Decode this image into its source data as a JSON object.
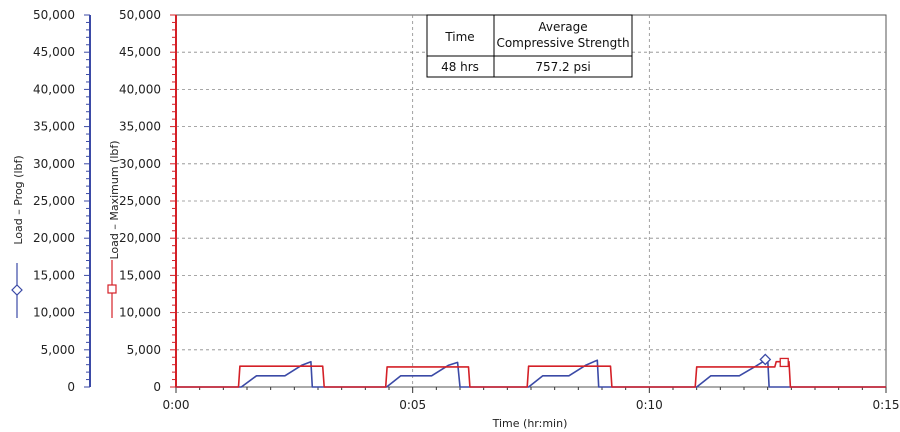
{
  "chart_data": {
    "type": "line",
    "title": "",
    "xlabel": "Time (hr:min)",
    "x_unit": "minutes",
    "xlim": [
      0,
      15
    ],
    "x_ticks": [
      0,
      5,
      10,
      15
    ],
    "x_tick_labels": [
      "0:00",
      "0:05",
      "0:10",
      "0:15"
    ],
    "y_axes": [
      {
        "label": "Load – Prog (lbf)",
        "color": "#3b4aa6",
        "ylim": [
          0,
          50000
        ],
        "ticks": [
          0,
          5000,
          10000,
          15000,
          20000,
          25000,
          30000,
          35000,
          40000,
          45000,
          50000
        ],
        "tick_labels": [
          "0",
          "5,000",
          "10,000",
          "15,000",
          "20,000",
          "25,000",
          "30,000",
          "35,000",
          "40,000",
          "45,000",
          "50,000"
        ]
      },
      {
        "label": "Load – Maximum (lbf)",
        "color": "#d42027",
        "ylim": [
          0,
          50000
        ],
        "ticks": [
          0,
          5000,
          10000,
          15000,
          20000,
          25000,
          30000,
          35000,
          40000,
          45000,
          50000
        ],
        "tick_labels": [
          "0",
          "5,000",
          "10,000",
          "15,000",
          "20,000",
          "25,000",
          "30,000",
          "35,000",
          "40,000",
          "45,000",
          "50,000"
        ]
      }
    ],
    "grid": true,
    "series": [
      {
        "name": "Load – Prog (lbf)",
        "color": "#3b4aa6",
        "marker": "diamond",
        "points": [
          [
            0,
            0
          ],
          [
            1.38,
            0
          ],
          [
            1.7,
            1500
          ],
          [
            2.3,
            1500
          ],
          [
            2.65,
            2900
          ],
          [
            2.85,
            3400
          ],
          [
            2.88,
            0
          ],
          [
            4.45,
            0
          ],
          [
            4.75,
            1500
          ],
          [
            5.4,
            1500
          ],
          [
            5.75,
            2900
          ],
          [
            5.95,
            3300
          ],
          [
            6.0,
            0
          ],
          [
            7.45,
            0
          ],
          [
            7.75,
            1500
          ],
          [
            8.3,
            1500
          ],
          [
            8.65,
            2900
          ],
          [
            8.9,
            3600
          ],
          [
            8.93,
            0
          ],
          [
            11.0,
            0
          ],
          [
            11.3,
            1500
          ],
          [
            11.9,
            1500
          ],
          [
            12.25,
            2800
          ],
          [
            12.5,
            3800
          ],
          [
            12.53,
            0
          ],
          [
            15,
            0
          ]
        ]
      },
      {
        "name": "Load – Maximum (lbf)",
        "color": "#d42027",
        "marker": "square",
        "points": [
          [
            0,
            0
          ],
          [
            1.32,
            0
          ],
          [
            1.35,
            2800
          ],
          [
            3.1,
            2800
          ],
          [
            3.13,
            0
          ],
          [
            4.43,
            0
          ],
          [
            4.46,
            2700
          ],
          [
            6.18,
            2700
          ],
          [
            6.21,
            0
          ],
          [
            7.42,
            0
          ],
          [
            7.45,
            2800
          ],
          [
            9.18,
            2800
          ],
          [
            9.21,
            0
          ],
          [
            10.97,
            0
          ],
          [
            11.0,
            2700
          ],
          [
            12.65,
            2700
          ],
          [
            12.68,
            3400
          ],
          [
            12.95,
            3400
          ],
          [
            12.98,
            0
          ],
          [
            15,
            0
          ]
        ]
      }
    ],
    "markers": [
      {
        "series": "Load – Prog (lbf)",
        "shape": "diamond",
        "x": 12.45,
        "y": 3700
      },
      {
        "series": "Load – Maximum (lbf)",
        "shape": "square",
        "x": 12.85,
        "y": 3300
      }
    ],
    "legend_placement": "left, rotated with axis titles",
    "info_table": {
      "headers": [
        "Time",
        "Average\nCompressive Strength"
      ],
      "header_lines": [
        [
          "Time"
        ],
        [
          "Average",
          "Compressive Strength"
        ]
      ],
      "rows": [
        [
          "48 hrs",
          "757.2 psi"
        ]
      ],
      "placement": "top-center"
    }
  }
}
